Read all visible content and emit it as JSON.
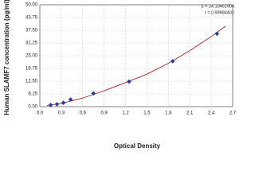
{
  "chart_data": {
    "type": "scatter",
    "x_label": "Optical Density",
    "y_label": "Human SLAMF7 concentration (pg/ml)",
    "annotations": [
      "S = 24.10462904",
      "r = 0.99984402"
    ],
    "x": [
      0.15,
      0.24,
      0.33,
      0.43,
      0.75,
      1.25,
      1.86,
      2.48
    ],
    "values": [
      0.8,
      1.2,
      1.9,
      3.5,
      6.5,
      12.3,
      22.3,
      35.8
    ],
    "color": "#2b3aa8",
    "curve": {
      "x": [
        0.1,
        0.3,
        0.6,
        0.9,
        1.2,
        1.5,
        1.8,
        2.1,
        2.4,
        2.6
      ],
      "values": [
        0.6,
        1.6,
        4.2,
        7.8,
        11.8,
        16,
        21.3,
        27.5,
        34.4,
        39.5
      ],
      "color": "#b02020"
    },
    "xlim": [
      0,
      2.7
    ],
    "xticks": [
      {
        "value": 0,
        "label": "0.0"
      },
      0.3,
      0.6,
      0.9,
      1.2,
      1.5,
      1.8,
      2.1,
      2.4,
      2.7
    ],
    "ylim": [
      0,
      50
    ],
    "yticks": [
      {
        "value": 0,
        "label": "0.00"
      },
      6.25,
      {
        "value": 12.5,
        "label": "12.50"
      },
      18.75,
      {
        "value": 25,
        "label": "25.00"
      },
      31.25,
      {
        "value": 37.5,
        "label": "37.50"
      },
      43.75,
      {
        "value": 50,
        "label": "50.00"
      }
    ],
    "grid": true
  }
}
